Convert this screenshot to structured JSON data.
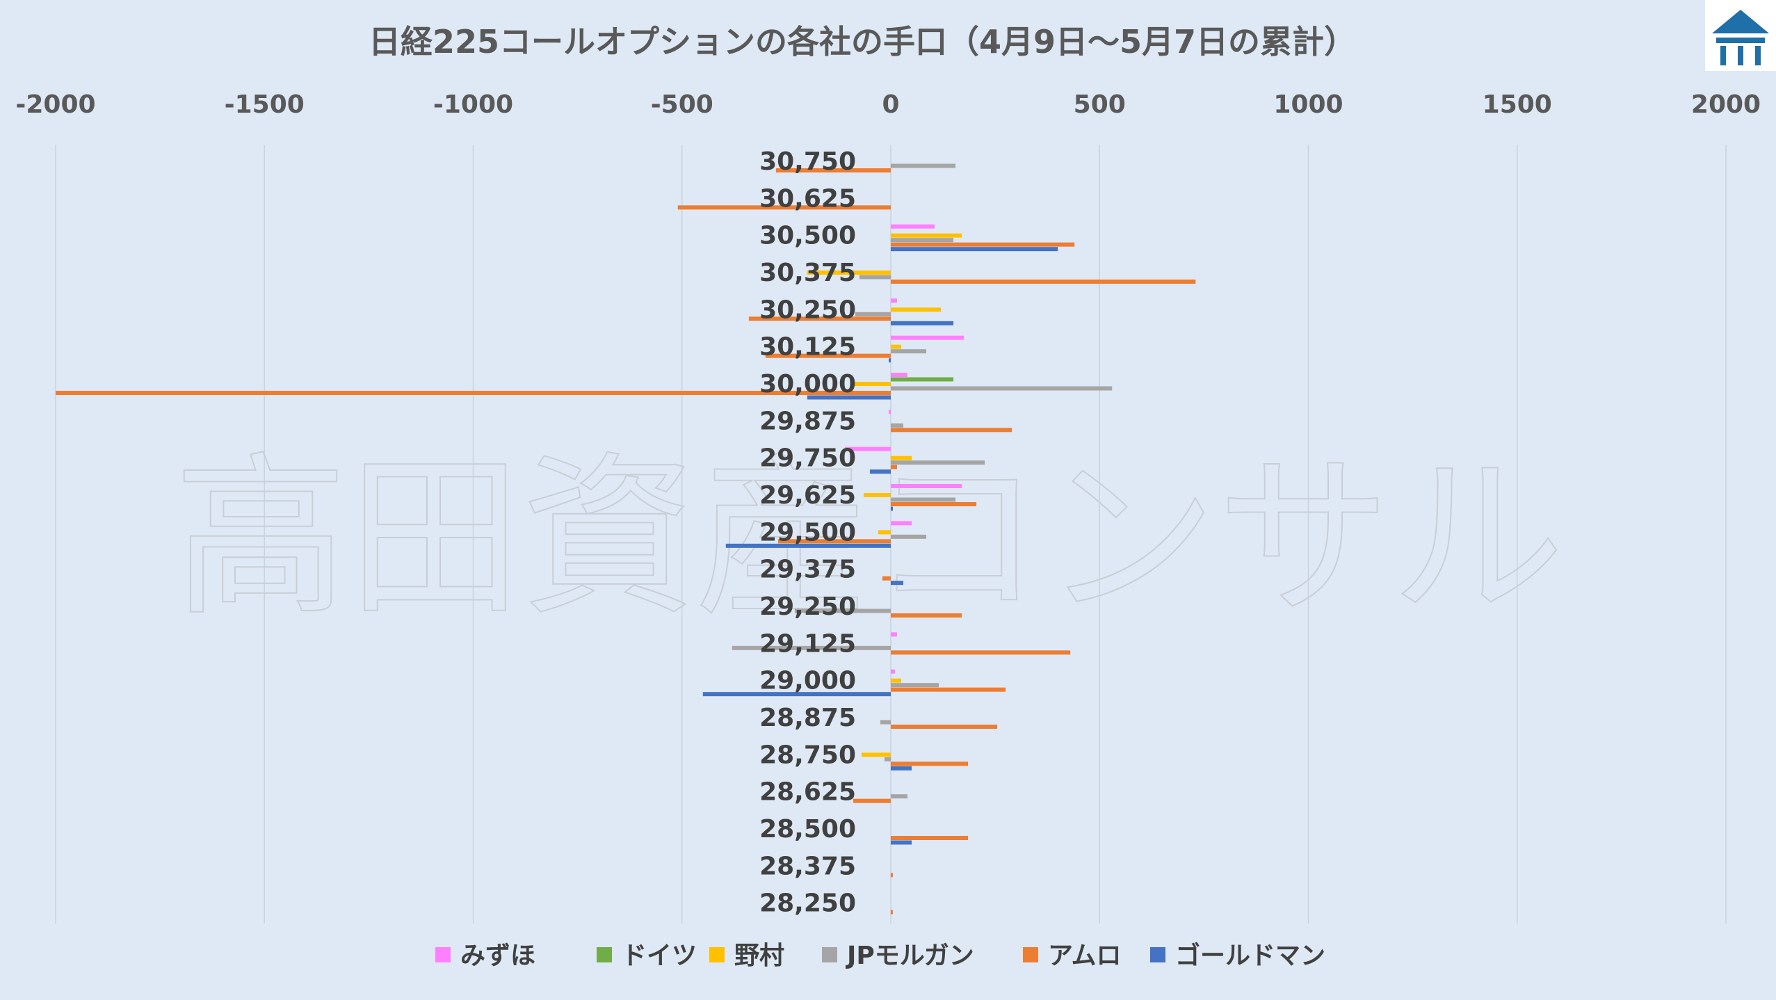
{
  "watermark": "高田資産コンサル",
  "colors": {
    "background": "#dfe9f5",
    "gridline": "#c9d3de",
    "logo_bg": "#ffffff",
    "logo_fg": "#1f6fa8"
  },
  "chart_data": {
    "type": "bar",
    "orientation": "horizontal",
    "title": "日経225コールオプションの各社の手口（4月9日～5月7日の累計）",
    "xlabel": "",
    "ylabel": "",
    "xlim": [
      -2000,
      2000
    ],
    "x_ticks": [
      "-2000",
      "-1500",
      "-1000",
      "-500",
      "0",
      "500",
      "1000",
      "1500",
      "2000"
    ],
    "x_tick_values": [
      -2000,
      -1500,
      -1000,
      -500,
      0,
      500,
      1000,
      1500,
      2000
    ],
    "x_axis_position": "top",
    "grid": true,
    "legend_position": "bottom",
    "categories": [
      "30,750",
      "30,625",
      "30,500",
      "30,375",
      "30,250",
      "30,125",
      "30,000",
      "29,875",
      "29,750",
      "29,625",
      "29,500",
      "29,375",
      "29,250",
      "29,125",
      "29,000",
      "28,875",
      "28,750",
      "28,625",
      "28,500",
      "28,375",
      "28,250"
    ],
    "series": [
      {
        "name": "みずほ",
        "color": "#ff80ff",
        "values": [
          0,
          0,
          105,
          0,
          15,
          175,
          40,
          -5,
          -110,
          170,
          50,
          0,
          0,
          15,
          10,
          0,
          0,
          0,
          0,
          0,
          0
        ]
      },
      {
        "name": "ドイツ",
        "color": "#70ad47",
        "values": [
          0,
          0,
          0,
          0,
          0,
          0,
          150,
          0,
          0,
          0,
          0,
          0,
          0,
          0,
          0,
          0,
          0,
          0,
          0,
          0,
          0
        ]
      },
      {
        "name": "野村",
        "color": "#ffc000",
        "values": [
          0,
          0,
          170,
          -200,
          120,
          25,
          -90,
          0,
          50,
          -65,
          -30,
          0,
          0,
          0,
          25,
          0,
          -70,
          0,
          0,
          0,
          0
        ]
      },
      {
        "name": "JPモルガン",
        "color": "#a5a5a5",
        "values": [
          155,
          0,
          150,
          -75,
          -85,
          85,
          530,
          30,
          225,
          155,
          85,
          0,
          -230,
          -380,
          115,
          -25,
          -15,
          40,
          0,
          0,
          0
        ]
      },
      {
        "name": "アムロ",
        "color": "#ed7d31",
        "values": [
          -275,
          -510,
          440,
          730,
          -340,
          -300,
          -2000,
          290,
          15,
          205,
          -270,
          -20,
          170,
          430,
          275,
          255,
          185,
          -90,
          185,
          5,
          5
        ]
      },
      {
        "name": "ゴールドマン",
        "color": "#4472c4",
        "values": [
          0,
          0,
          400,
          0,
          150,
          -5,
          -200,
          0,
          -50,
          5,
          -395,
          30,
          0,
          0,
          -450,
          0,
          50,
          0,
          50,
          0,
          0
        ]
      }
    ]
  }
}
